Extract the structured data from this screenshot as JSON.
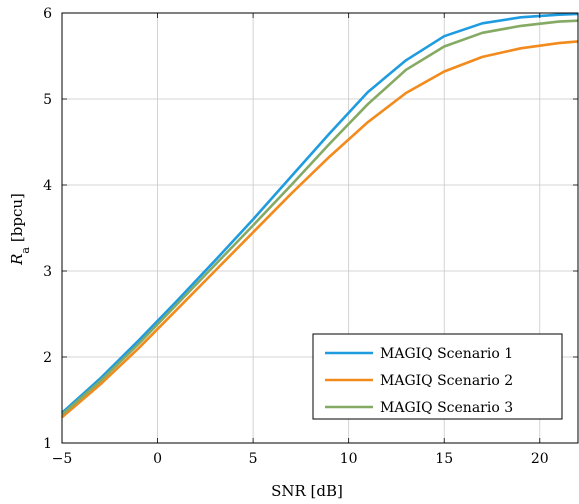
{
  "chart_data": {
    "type": "line",
    "title": "",
    "xlabel": "SNR [dB]",
    "ylabel_main": "R",
    "ylabel_sub": "a",
    "ylabel_unit": "[bpcu]",
    "xlim": [
      -5,
      22
    ],
    "ylim": [
      1,
      6
    ],
    "xticks": [
      -5,
      0,
      5,
      10,
      15,
      20
    ],
    "yticks": [
      1,
      2,
      3,
      4,
      5,
      6
    ],
    "grid": true,
    "legend_position": "bottom-right",
    "series": [
      {
        "name": "MAGIQ Scenario 1",
        "color": "#1f9be0",
        "x": [
          -5,
          -3,
          -1,
          1,
          3,
          5,
          7,
          9,
          11,
          13,
          15,
          17,
          19,
          21,
          22
        ],
        "y": [
          1.35,
          1.75,
          2.19,
          2.65,
          3.12,
          3.6,
          4.1,
          4.6,
          5.08,
          5.45,
          5.73,
          5.88,
          5.95,
          5.98,
          5.99
        ]
      },
      {
        "name": "MAGIQ Scenario 2",
        "color": "#f28a1c",
        "x": [
          -5,
          -3,
          -1,
          1,
          3,
          5,
          7,
          9,
          11,
          13,
          15,
          17,
          19,
          21,
          22
        ],
        "y": [
          1.3,
          1.68,
          2.1,
          2.55,
          3.0,
          3.45,
          3.9,
          4.33,
          4.73,
          5.07,
          5.32,
          5.49,
          5.59,
          5.65,
          5.67
        ]
      },
      {
        "name": "MAGIQ Scenario 3",
        "color": "#84aa64",
        "x": [
          -5,
          -3,
          -1,
          1,
          3,
          5,
          7,
          9,
          11,
          13,
          15,
          17,
          19,
          21,
          22
        ],
        "y": [
          1.33,
          1.72,
          2.15,
          2.61,
          3.07,
          3.53,
          4.0,
          4.48,
          4.94,
          5.34,
          5.61,
          5.77,
          5.85,
          5.9,
          5.91
        ]
      }
    ]
  }
}
